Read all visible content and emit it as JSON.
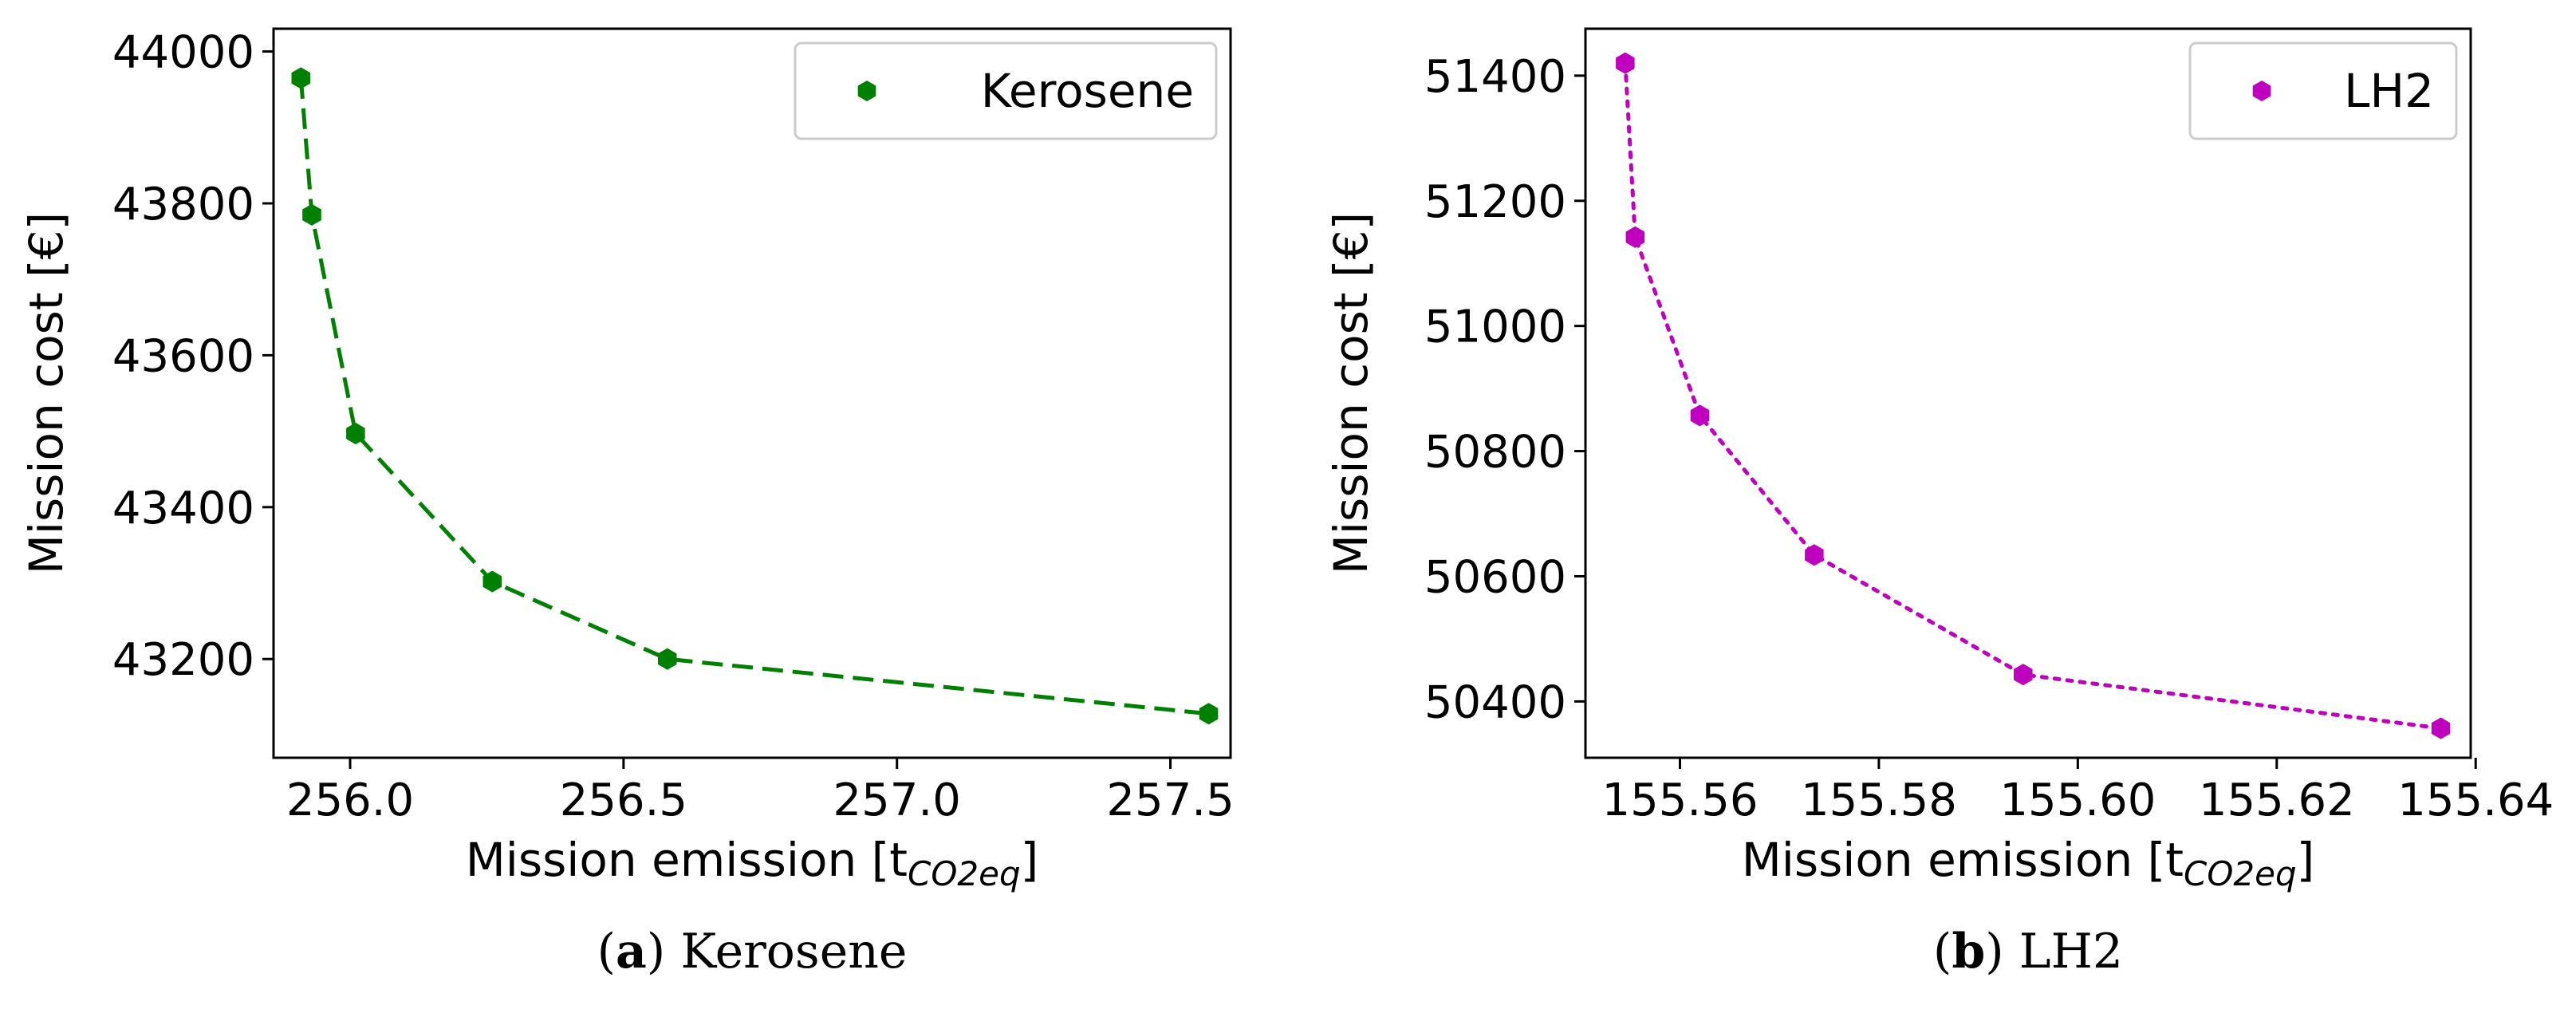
{
  "chart_data": [
    {
      "type": "line",
      "caption_letter": "a",
      "caption_text": "Kerosene",
      "xlabel_main": "Mission emission [t",
      "xlabel_sub": "CO2eq",
      "xlabel_end": "]",
      "ylabel": "Mission cost [€]",
      "xlim": [
        255.86,
        257.61
      ],
      "ylim": [
        43070,
        44030
      ],
      "xticks": [
        256.0,
        256.5,
        257.0,
        257.5
      ],
      "xtick_labels": [
        "256.0",
        "256.5",
        "257.0",
        "257.5"
      ],
      "yticks": [
        43200,
        43400,
        43600,
        43800,
        44000
      ],
      "ytick_labels": [
        "43200",
        "43400",
        "43600",
        "43800",
        "44000"
      ],
      "legend_position": "top-right",
      "grid": false,
      "series": [
        {
          "name": "Kerosene",
          "color": "#008000",
          "line_style": "dashed",
          "marker": "hexagon",
          "x": [
            255.91,
            255.93,
            256.01,
            256.26,
            256.58,
            257.57
          ],
          "y": [
            43965,
            43785,
            43497,
            43302,
            43200,
            43128
          ]
        }
      ]
    },
    {
      "type": "line",
      "caption_letter": "b",
      "caption_text": "LH2",
      "xlabel_main": "Mission emission [t",
      "xlabel_sub": "CO2eq",
      "xlabel_end": "]",
      "ylabel": "Mission cost [€]",
      "xlim": [
        155.5505,
        155.6395
      ],
      "ylim": [
        50310,
        51475
      ],
      "xticks": [
        155.56,
        155.58,
        155.6,
        155.62,
        155.64
      ],
      "xtick_labels": [
        "155.56",
        "155.58",
        "155.60",
        "155.62",
        "155.64"
      ],
      "yticks": [
        50400,
        50600,
        50800,
        51000,
        51200,
        51400
      ],
      "ytick_labels": [
        "50400",
        "50600",
        "50800",
        "51000",
        "51200",
        "51400"
      ],
      "legend_position": "top-right",
      "grid": false,
      "series": [
        {
          "name": "LH2",
          "color": "#bf00bf",
          "line_style": "dotted",
          "marker": "hexagon",
          "x": [
            155.5545,
            155.5555,
            155.562,
            155.5735,
            155.5945,
            155.6365
          ],
          "y": [
            51420,
            51142,
            50857,
            50634,
            50443,
            50357
          ]
        }
      ]
    }
  ]
}
